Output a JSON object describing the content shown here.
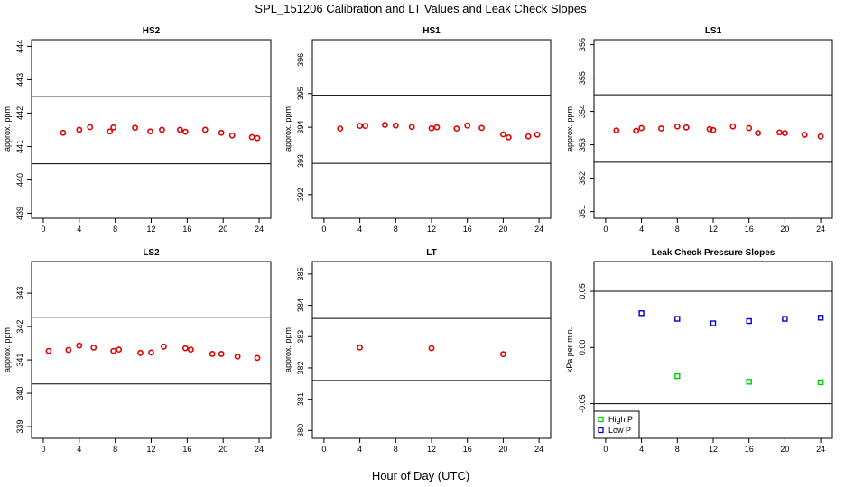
{
  "figure": {
    "title": "SPL_151206  Calibration and LT Values and Leak Check Slopes",
    "xlabel": "Hour of Day (UTC)"
  },
  "chart_data": [
    {
      "type": "scatter",
      "title": "HS2",
      "xlabel": "",
      "ylabel": "approx. ppm",
      "xlim": [
        -1.3,
        25.3
      ],
      "ylim": [
        438.85,
        444.2
      ],
      "xticks": [
        0,
        4,
        8,
        12,
        16,
        20,
        24
      ],
      "yticks": [
        439,
        440,
        441,
        442,
        443,
        444
      ],
      "hlines": [
        440.48,
        442.5
      ],
      "series": [
        {
          "color": "#e00000",
          "marker": "circle",
          "x": [
            2.2,
            4.0,
            5.2,
            7.4,
            7.8,
            10.2,
            11.9,
            13.2,
            15.2,
            15.8,
            18.0,
            19.8,
            21.0,
            23.2,
            23.8
          ],
          "y": [
            441.41,
            441.5,
            441.58,
            441.45,
            441.57,
            441.56,
            441.45,
            441.5,
            441.5,
            441.44,
            441.5,
            441.41,
            441.33,
            441.28,
            441.25
          ]
        }
      ]
    },
    {
      "type": "scatter",
      "title": "HS1",
      "xlabel": "",
      "ylabel": "approx. ppm",
      "xlim": [
        -1.3,
        25.3
      ],
      "ylim": [
        391.3,
        396.6
      ],
      "xticks": [
        0,
        4,
        8,
        12,
        16,
        20,
        24
      ],
      "yticks": [
        392,
        393,
        394,
        395,
        396
      ],
      "hlines": [
        392.93,
        394.95
      ],
      "series": [
        {
          "color": "#e00000",
          "marker": "circle",
          "x": [
            1.8,
            4.0,
            4.6,
            6.8,
            8.0,
            9.8,
            12.0,
            12.6,
            14.8,
            16.0,
            17.6,
            20.0,
            20.6,
            22.8,
            23.8
          ],
          "y": [
            393.96,
            394.04,
            394.04,
            394.07,
            394.05,
            394.01,
            393.97,
            394.0,
            393.96,
            394.05,
            393.98,
            393.79,
            393.7,
            393.73,
            393.78
          ]
        }
      ]
    },
    {
      "type": "scatter",
      "title": "LS1",
      "xlabel": "",
      "ylabel": "approx. ppm",
      "xlim": [
        -1.3,
        25.3
      ],
      "ylim": [
        350.8,
        356.15
      ],
      "xticks": [
        0,
        4,
        8,
        12,
        16,
        20,
        24
      ],
      "yticks": [
        351,
        352,
        353,
        354,
        355,
        356
      ],
      "hlines": [
        352.48,
        354.5
      ],
      "series": [
        {
          "color": "#e00000",
          "marker": "circle",
          "x": [
            1.2,
            3.4,
            4.0,
            6.2,
            8.0,
            9.0,
            11.6,
            12.0,
            14.2,
            16.0,
            17.0,
            19.4,
            20.0,
            22.2,
            24.0
          ],
          "y": [
            353.43,
            353.42,
            353.5,
            353.49,
            353.55,
            353.52,
            353.47,
            353.44,
            353.55,
            353.5,
            353.35,
            353.37,
            353.35,
            353.3,
            353.25
          ]
        }
      ]
    },
    {
      "type": "scatter",
      "title": "LS2",
      "xlabel": "",
      "ylabel": "approx. ppm",
      "xlim": [
        -1.3,
        25.3
      ],
      "ylim": [
        338.65,
        343.95
      ],
      "xticks": [
        0,
        4,
        8,
        12,
        16,
        20,
        24
      ],
      "yticks": [
        339,
        340,
        341,
        342,
        343
      ],
      "hlines": [
        340.28,
        342.28
      ],
      "series": [
        {
          "color": "#e00000",
          "marker": "circle",
          "x": [
            0.6,
            2.8,
            4.0,
            5.6,
            7.8,
            8.4,
            10.8,
            12.0,
            13.4,
            15.8,
            16.4,
            18.8,
            19.8,
            21.6,
            23.8
          ],
          "y": [
            341.27,
            341.3,
            341.43,
            341.37,
            341.27,
            341.31,
            341.21,
            341.22,
            341.4,
            341.35,
            341.31,
            341.18,
            341.18,
            341.1,
            341.06
          ]
        }
      ]
    },
    {
      "type": "scatter",
      "title": "LT",
      "xlabel": "",
      "ylabel": "approx. ppm",
      "xlim": [
        -1.3,
        25.3
      ],
      "ylim": [
        379.75,
        385.4
      ],
      "xticks": [
        0,
        4,
        8,
        12,
        16,
        20,
        24
      ],
      "yticks": [
        380,
        381,
        382,
        383,
        384,
        385
      ],
      "hlines": [
        381.6,
        383.58
      ],
      "series": [
        {
          "color": "#e00000",
          "marker": "circle",
          "x": [
            4.0,
            12.0,
            20.0
          ],
          "y": [
            382.65,
            382.63,
            382.44
          ]
        }
      ]
    },
    {
      "type": "scatter",
      "title": "Leak Check Pressure Slopes",
      "xlabel": "",
      "ylabel": "kPa per min.",
      "xlim": [
        -1.3,
        25.3
      ],
      "ylim": [
        -0.0808,
        0.0765
      ],
      "xticks": [
        0,
        4,
        8,
        12,
        16,
        20,
        24
      ],
      "yticks": [
        -0.05,
        0.0,
        0.05
      ],
      "ytick_labels": [
        "-0.05",
        "0.00",
        "0.05"
      ],
      "hlines": [
        -0.05,
        0.05
      ],
      "legend": "bottom-left",
      "series": [
        {
          "name": "High P",
          "color": "#00c800",
          "marker": "square",
          "x": [
            8,
            16,
            24
          ],
          "y": [
            -0.0255,
            -0.0305,
            -0.031
          ]
        },
        {
          "name": "Low P",
          "color": "#0000cc",
          "marker": "square",
          "x": [
            4,
            8,
            12,
            16,
            20,
            24
          ],
          "y": [
            0.0305,
            0.0255,
            0.0215,
            0.0235,
            0.0255,
            0.0265
          ]
        }
      ]
    }
  ]
}
